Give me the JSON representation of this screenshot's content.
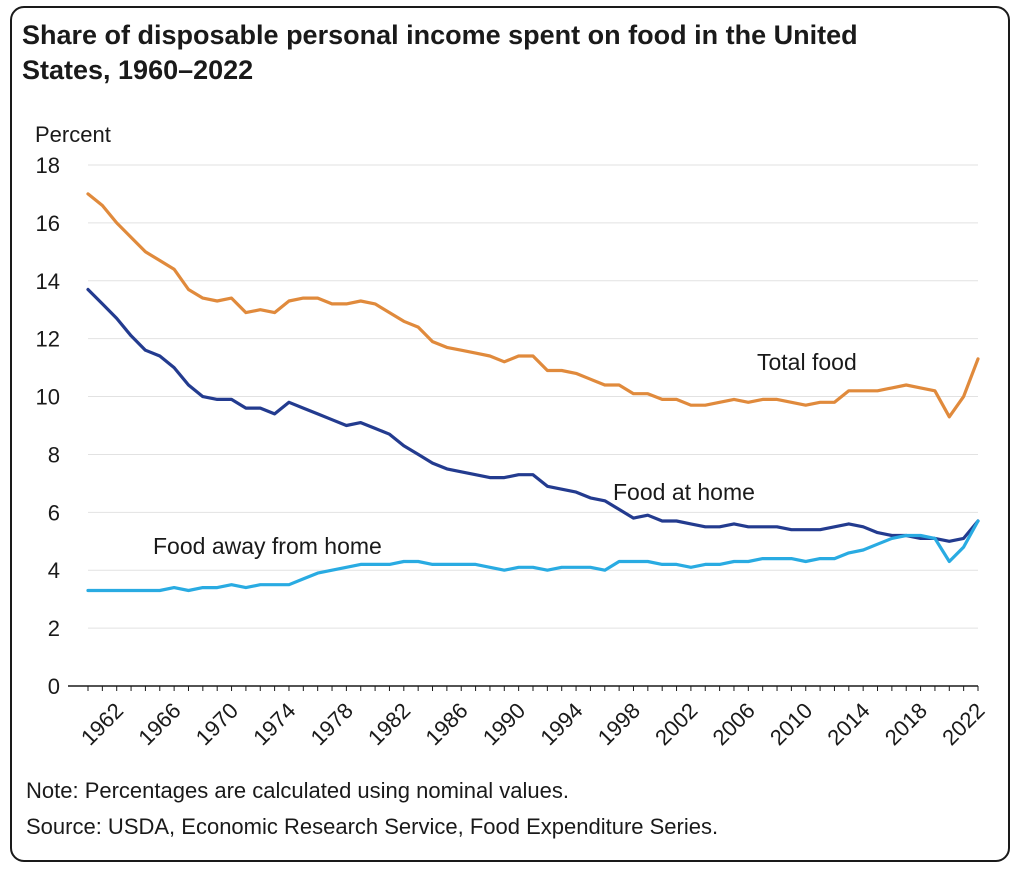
{
  "title_line1": "Share of disposable personal income spent on food in the United",
  "title_line2": "States, 1960–2022",
  "note": "Note: Percentages are calculated using nominal values.",
  "source": "Source: USDA, Economic Research Service, Food Expenditure Series.",
  "chart_data": {
    "type": "line",
    "title": "Share of disposable personal income spent on food in the United States, 1960–2022",
    "xlabel": "",
    "ylabel": "Percent",
    "ylim": [
      0,
      18
    ],
    "yticks": [
      0,
      2,
      4,
      6,
      8,
      10,
      12,
      14,
      16,
      18
    ],
    "xlim": [
      1960,
      2022
    ],
    "xticks": [
      1962,
      1966,
      1970,
      1974,
      1978,
      1982,
      1986,
      1990,
      1994,
      1998,
      2002,
      2006,
      2010,
      2014,
      2018,
      2022
    ],
    "grid": true,
    "x": [
      1960,
      1961,
      1962,
      1963,
      1964,
      1965,
      1966,
      1967,
      1968,
      1969,
      1970,
      1971,
      1972,
      1973,
      1974,
      1975,
      1976,
      1977,
      1978,
      1979,
      1980,
      1981,
      1982,
      1983,
      1984,
      1985,
      1986,
      1987,
      1988,
      1989,
      1990,
      1991,
      1992,
      1993,
      1994,
      1995,
      1996,
      1997,
      1998,
      1999,
      2000,
      2001,
      2002,
      2003,
      2004,
      2005,
      2006,
      2007,
      2008,
      2009,
      2010,
      2011,
      2012,
      2013,
      2014,
      2015,
      2016,
      2017,
      2018,
      2019,
      2020,
      2021,
      2022
    ],
    "series": [
      {
        "name": "Total food",
        "color": "#E08A3C",
        "values": [
          17.0,
          16.6,
          16.0,
          15.5,
          15.0,
          14.7,
          14.4,
          13.7,
          13.4,
          13.3,
          13.4,
          12.9,
          13.0,
          12.9,
          13.3,
          13.4,
          13.4,
          13.2,
          13.2,
          13.3,
          13.2,
          12.9,
          12.6,
          12.4,
          11.9,
          11.7,
          11.6,
          11.5,
          11.4,
          11.2,
          11.4,
          11.4,
          10.9,
          10.9,
          10.8,
          10.6,
          10.4,
          10.4,
          10.1,
          10.1,
          9.9,
          9.9,
          9.7,
          9.7,
          9.8,
          9.9,
          9.8,
          9.9,
          9.9,
          9.8,
          9.7,
          9.8,
          9.8,
          10.2,
          10.2,
          10.2,
          10.3,
          10.4,
          10.3,
          10.2,
          9.3,
          10.0,
          11.3
        ]
      },
      {
        "name": "Food at home",
        "color": "#233B8F",
        "values": [
          13.7,
          13.2,
          12.7,
          12.1,
          11.6,
          11.4,
          11.0,
          10.4,
          10.0,
          9.9,
          9.9,
          9.6,
          9.6,
          9.4,
          9.8,
          9.6,
          9.4,
          9.2,
          9.0,
          9.1,
          8.9,
          8.7,
          8.3,
          8.0,
          7.7,
          7.5,
          7.4,
          7.3,
          7.2,
          7.2,
          7.3,
          7.3,
          6.9,
          6.8,
          6.7,
          6.5,
          6.4,
          6.1,
          5.8,
          5.9,
          5.7,
          5.7,
          5.6,
          5.5,
          5.5,
          5.6,
          5.5,
          5.5,
          5.5,
          5.4,
          5.4,
          5.4,
          5.5,
          5.6,
          5.5,
          5.3,
          5.2,
          5.2,
          5.1,
          5.1,
          5.0,
          5.1,
          5.7
        ]
      },
      {
        "name": "Food away from home",
        "color": "#29ABE2",
        "values": [
          3.3,
          3.3,
          3.3,
          3.3,
          3.3,
          3.3,
          3.4,
          3.3,
          3.4,
          3.4,
          3.5,
          3.4,
          3.5,
          3.5,
          3.5,
          3.7,
          3.9,
          4.0,
          4.1,
          4.2,
          4.2,
          4.2,
          4.3,
          4.3,
          4.2,
          4.2,
          4.2,
          4.2,
          4.1,
          4.0,
          4.1,
          4.1,
          4.0,
          4.1,
          4.1,
          4.1,
          4.0,
          4.3,
          4.3,
          4.3,
          4.2,
          4.2,
          4.1,
          4.2,
          4.2,
          4.3,
          4.3,
          4.4,
          4.4,
          4.4,
          4.3,
          4.4,
          4.4,
          4.6,
          4.7,
          4.9,
          5.1,
          5.2,
          5.2,
          5.1,
          4.3,
          4.8,
          5.7
        ]
      }
    ],
    "annotations": [
      {
        "text": "Total food",
        "series": "Total food"
      },
      {
        "text": "Food at home",
        "series": "Food at home"
      },
      {
        "text": "Food away from home",
        "series": "Food away from home"
      }
    ]
  }
}
